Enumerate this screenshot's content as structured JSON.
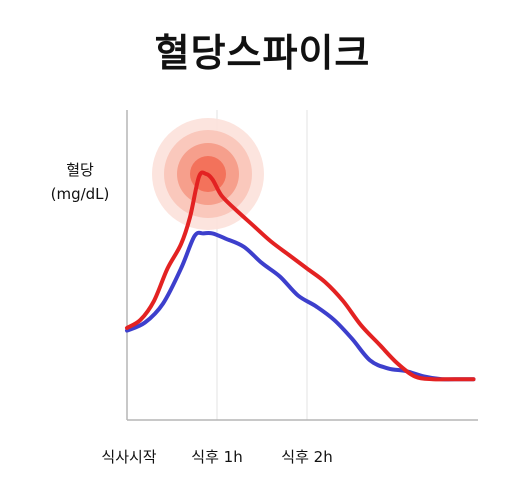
{
  "title": "혈당스파이크",
  "chart_data": {
    "type": "line",
    "title": "혈당스파이크",
    "ylabel": [
      "혈당",
      "(mg/dL)"
    ],
    "xlabel": "",
    "x_ticks": [
      {
        "label": "식사시작",
        "x": 0
      },
      {
        "label": "식후 1h",
        "x": 1
      },
      {
        "label": "식후 2h",
        "x": 2
      }
    ],
    "xlim": [
      0,
      3.9
    ],
    "ylim": [
      0,
      100
    ],
    "grid": {
      "vertical_at_ticks": true
    },
    "y_ticks_shown": false,
    "highlight": {
      "type": "glow",
      "x": 0.9,
      "y": 80,
      "color": "#f3604a"
    },
    "series": [
      {
        "color": "#e32222",
        "x": [
          0,
          0.15,
          0.3,
          0.45,
          0.6,
          0.7,
          0.8,
          0.88,
          0.95,
          1.05,
          1.2,
          1.4,
          1.6,
          1.8,
          2.0,
          2.2,
          2.4,
          2.6,
          2.8,
          3.0,
          3.2,
          3.4,
          3.6,
          3.85
        ],
        "y": [
          23,
          26,
          33,
          45,
          54,
          64,
          79,
          80,
          78,
          72,
          67,
          61,
          55,
          50,
          45,
          40,
          33,
          24,
          17,
          10,
          5,
          4,
          4,
          4
        ]
      },
      {
        "color": "#3d3fcc",
        "x": [
          0,
          0.2,
          0.4,
          0.6,
          0.75,
          0.85,
          0.95,
          1.1,
          1.3,
          1.5,
          1.7,
          1.9,
          2.1,
          2.3,
          2.5,
          2.7,
          2.9,
          3.1,
          3.3,
          3.5,
          3.7,
          3.85
        ],
        "y": [
          22,
          25,
          32,
          45,
          57,
          58,
          58,
          56,
          53,
          47,
          42,
          35,
          31,
          26,
          19,
          11,
          8,
          7,
          5,
          4,
          4,
          4
        ]
      }
    ]
  }
}
